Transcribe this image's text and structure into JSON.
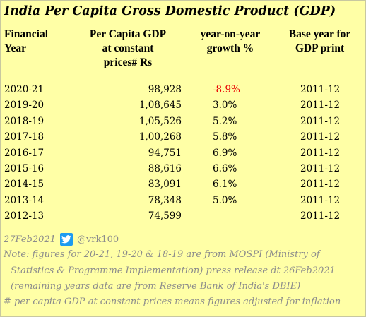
{
  "title": "India Per Capita Gross Domestic Product (GDP)",
  "headers": {
    "year": [
      "Financial",
      "Year"
    ],
    "gdp": [
      "Per Capita GDP",
      "at constant",
      "prices# Rs"
    ],
    "growth": [
      "year-on-year",
      "growth %"
    ],
    "base": [
      "Base year for",
      "GDP print"
    ]
  },
  "rows": [
    {
      "year": "2020-21",
      "gdp": "98,928",
      "growth": "-8.9%",
      "base": "2011-12"
    },
    {
      "year": "2019-20",
      "gdp": "1,08,645",
      "growth": "3.0%",
      "base": "2011-12"
    },
    {
      "year": "2018-19",
      "gdp": "1,05,526",
      "growth": "5.2%",
      "base": "2011-12"
    },
    {
      "year": "2017-18",
      "gdp": "1,00,268",
      "growth": "5.8%",
      "base": "2011-12"
    },
    {
      "year": "2016-17",
      "gdp": "94,751",
      "growth": "6.9%",
      "base": "2011-12"
    },
    {
      "year": "2015-16",
      "gdp": "88,616",
      "growth": "6.6%",
      "base": "2011-12"
    },
    {
      "year": "2014-15",
      "gdp": "83,091",
      "growth": "6.1%",
      "base": "2011-12"
    },
    {
      "year": "2013-14",
      "gdp": "78,348",
      "growth": "5.0%",
      "base": "2011-12"
    },
    {
      "year": "2012-13",
      "gdp": "74,599",
      "growth": "",
      "base": "2011-12"
    }
  ],
  "footer": {
    "date": "27Feb2021",
    "handle": "@vrk100",
    "note_line1": "Note: figures for 20-21, 19-20 & 18-19 are from MOSPI (Ministry of",
    "note_line2": "Statistics & Programme Implementation) press release dt 26Feb2021",
    "note_line3": "(remaining years data are from Reserve Bank of India's DBIE)",
    "note_line4": "# per capita GDP at constant prices means figures adjusted for inflation"
  },
  "colors": {
    "background": "#ffffa6",
    "negative": "#e80000",
    "footer_text": "#8c8c8c",
    "twitter": "#1d9bf0"
  },
  "icons": {
    "social": "twitter-icon"
  }
}
